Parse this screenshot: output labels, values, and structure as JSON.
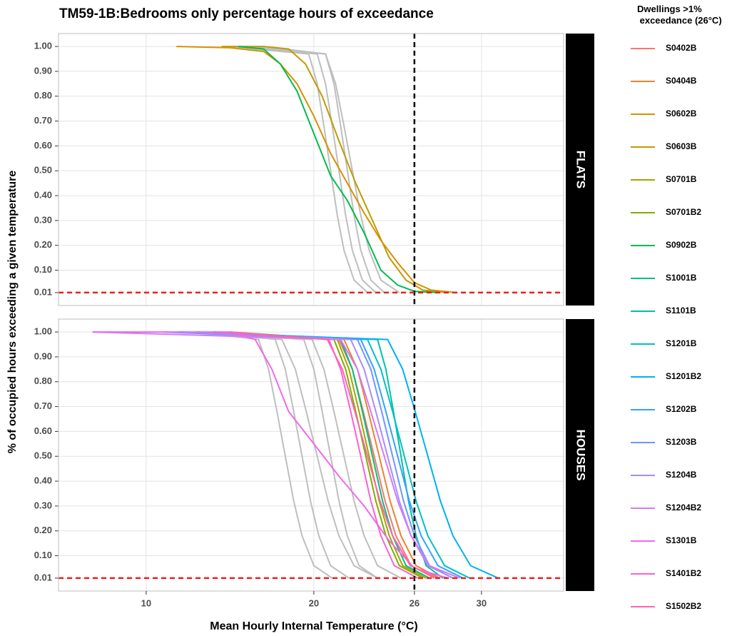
{
  "chart_data": {
    "type": "line",
    "title": "TM59-1B:Bedrooms only percentage hours of exceedance",
    "x_label": "Mean Hourly Internal Temperature (°C)",
    "y_label": "% of occupied hours exceeding a given temperature",
    "legend_title": "Dwellings >1%\n exceedance (26°C)",
    "xlim": [
      4.77,
      34.9
    ],
    "xticks": [
      10,
      20,
      26,
      30
    ],
    "ylim": [
      -0.042,
      1.052
    ],
    "yticks": [
      {
        "value": 0.01,
        "label": "0.01"
      },
      {
        "value": 0.1,
        "label": "0.10"
      },
      {
        "value": 0.2,
        "label": "0.20"
      },
      {
        "value": 0.3,
        "label": "0.30"
      },
      {
        "value": 0.4,
        "label": "0.40"
      },
      {
        "value": 0.5,
        "label": "0.50"
      },
      {
        "value": 0.6,
        "label": "0.60"
      },
      {
        "value": 0.7,
        "label": "0.70"
      },
      {
        "value": 0.8,
        "label": "0.80"
      },
      {
        "value": 0.9,
        "label": "0.90"
      },
      {
        "value": 1,
        "label": "1.00"
      }
    ],
    "grid": true,
    "reference_x": 26,
    "reference_x_color": "#000000",
    "reference_y": 0.01,
    "reference_y_color": "#e8211f",
    "panels": [
      {
        "label": "FLATS",
        "series": [
          {
            "color": "#bebebe",
            "x": [
              14.8,
              19.7,
              20.2,
              20.6,
              21.0,
              21.4,
              21.8,
              22.4,
              23.2
            ],
            "values": [
              1,
              0.97,
              0.85,
              0.68,
              0.5,
              0.32,
              0.18,
              0.06,
              0.01
            ]
          },
          {
            "color": "#bebebe",
            "x": [
              15.5,
              20.2,
              20.7,
              21.1,
              21.5,
              21.9,
              22.3,
              22.9,
              23.7
            ],
            "values": [
              1,
              0.97,
              0.85,
              0.68,
              0.5,
              0.32,
              0.18,
              0.06,
              0.01
            ]
          },
          {
            "color": "#bebebe",
            "x": [
              16,
              20.7,
              21.2,
              21.6,
              22.0,
              22.4,
              22.8,
              23.4,
              24.2
            ],
            "values": [
              1,
              0.97,
              0.85,
              0.68,
              0.5,
              0.32,
              0.18,
              0.06,
              0.01
            ]
          },
          {
            "color": "#bebebe",
            "x": [
              17,
              20.7,
              21.3,
              21.8,
              22.3,
              22.8,
              23.3,
              24.0,
              25.1
            ],
            "values": [
              1,
              0.97,
              0.85,
              0.68,
              0.5,
              0.32,
              0.18,
              0.06,
              0.01
            ]
          },
          {
            "name": "S0602B",
            "color": "#d89000",
            "x": [
              11.8,
              15,
              17,
              18,
              19,
              20,
              21,
              22,
              23,
              24,
              25,
              26,
              27,
              28.5
            ],
            "values": [
              1,
              0.995,
              0.98,
              0.93,
              0.85,
              0.72,
              0.57,
              0.45,
              0.33,
              0.22,
              0.13,
              0.05,
              0.02,
              0.01
            ]
          },
          {
            "name": "S0603B",
            "color": "#c09b00",
            "x": [
              14.5,
              17,
              18.5,
              19.5,
              20.5,
              21.5,
              22.5,
              23.5,
              24.5,
              25.5,
              26.5,
              28
            ],
            "values": [
              1,
              1,
              0.99,
              0.93,
              0.8,
              0.62,
              0.45,
              0.3,
              0.15,
              0.06,
              0.02,
              0.01
            ]
          },
          {
            "name": "S0902B",
            "color": "#00bb4e",
            "x": [
              15.5,
              17,
              18,
              19,
              20,
              21,
              22,
              23,
              24,
              25,
              26,
              27.5
            ],
            "values": [
              1,
              0.99,
              0.93,
              0.82,
              0.65,
              0.48,
              0.38,
              0.25,
              0.1,
              0.04,
              0.015,
              0.01
            ]
          }
        ]
      },
      {
        "label": "HOUSES",
        "series": [
          {
            "color": "#bebebe",
            "x": [
              13,
              16.7,
              17.3,
              17.8,
              18.3,
              18.8,
              19.3,
              20.0,
              21.1
            ],
            "values": [
              1,
              0.97,
              0.85,
              0.68,
              0.5,
              0.32,
              0.18,
              0.06,
              0.01
            ]
          },
          {
            "color": "#bebebe",
            "x": [
              14,
              17.7,
              18.3,
              18.8,
              19.3,
              19.8,
              20.3,
              21.0,
              22.1
            ],
            "values": [
              1,
              0.97,
              0.85,
              0.68,
              0.5,
              0.32,
              0.18,
              0.06,
              0.01
            ]
          },
          {
            "color": "#bebebe",
            "x": [
              12,
              18.1,
              18.9,
              19.55,
              20.2,
              20.85,
              21.5,
              22.4,
              23.8
            ],
            "values": [
              1,
              0.97,
              0.85,
              0.68,
              0.5,
              0.32,
              0.18,
              0.06,
              0.01
            ]
          },
          {
            "color": "#bebebe",
            "x": [
              13,
              19.4,
              20.0,
              20.5,
              21.0,
              21.5,
              22.0,
              22.7,
              23.8
            ],
            "values": [
              1,
              0.97,
              0.85,
              0.68,
              0.5,
              0.32,
              0.18,
              0.06,
              0.01
            ]
          },
          {
            "color": "#bebebe",
            "x": [
              14,
              19.9,
              20.6,
              21.2,
              21.8,
              22.4,
              23.0,
              23.8,
              25.2
            ],
            "values": [
              1,
              0.97,
              0.85,
              0.68,
              0.5,
              0.32,
              0.18,
              0.06,
              0.01
            ]
          },
          {
            "name": "S0402B",
            "color": "#f8766d",
            "x": [
              12,
              21.5,
              22.3,
              22.95,
              23.6,
              24.25,
              24.9,
              25.8,
              27.2
            ],
            "values": [
              1,
              0.97,
              0.85,
              0.68,
              0.5,
              0.32,
              0.18,
              0.06,
              0.01
            ]
          },
          {
            "name": "S0404B",
            "color": "#ea8331",
            "x": [
              13,
              21.8,
              22.6,
              23.25,
              23.9,
              24.55,
              25.2,
              26.1,
              27.5
            ],
            "values": [
              1,
              0.97,
              0.85,
              0.68,
              0.5,
              0.32,
              0.18,
              0.06,
              0.01
            ]
          },
          {
            "name": "S0701B",
            "color": "#a3a500",
            "x": [
              14,
              21.4,
              22.1,
              22.7,
              23.3,
              23.9,
              24.5,
              25.3,
              26.7
            ],
            "values": [
              1,
              0.97,
              0.85,
              0.68,
              0.5,
              0.32,
              0.18,
              0.06,
              0.01
            ]
          },
          {
            "name": "S0701B2",
            "color": "#7cae00",
            "x": [
              13,
              21.2,
              21.9,
              22.5,
              23.1,
              23.7,
              24.3,
              25.1,
              26.5
            ],
            "values": [
              1,
              0.97,
              0.85,
              0.68,
              0.5,
              0.32,
              0.18,
              0.06,
              0.01
            ]
          },
          {
            "name": "S1001B",
            "color": "#00bf7d",
            "x": [
              15,
              21.6,
              22.3,
              22.9,
              23.5,
              24.1,
              24.7,
              25.5,
              26.9
            ],
            "values": [
              1,
              0.97,
              0.85,
              0.68,
              0.5,
              0.32,
              0.18,
              0.06,
              0.01
            ]
          },
          {
            "name": "S1101B",
            "color": "#00c1a3",
            "x": [
              13,
              23.8,
              24.3,
              24.75,
              25.2,
              25.65,
              26.1,
              26.7,
              27.7
            ],
            "values": [
              1,
              0.97,
              0.85,
              0.68,
              0.5,
              0.32,
              0.18,
              0.06,
              0.01
            ]
          },
          {
            "name": "S1201B",
            "color": "#00bfc4",
            "x": [
              12,
              23.2,
              24.0,
              24.7,
              25.4,
              26.1,
              26.8,
              27.8,
              29.3
            ],
            "values": [
              1,
              0.97,
              0.85,
              0.68,
              0.5,
              0.32,
              0.18,
              0.06,
              0.01
            ]
          },
          {
            "name": "S1201B2",
            "color": "#00b0f6",
            "x": [
              12,
              24.4,
              25.3,
              26.05,
              26.8,
              27.55,
              28.3,
              29.35,
              31.0
            ],
            "values": [
              1,
              0.97,
              0.85,
              0.68,
              0.5,
              0.32,
              0.18,
              0.06,
              0.01
            ]
          },
          {
            "name": "S1202B",
            "color": "#35a2ff",
            "x": [
              11,
              22.8,
              23.6,
              24.3,
              25.0,
              25.7,
              26.4,
              27.4,
              28.9
            ],
            "values": [
              1,
              0.97,
              0.85,
              0.68,
              0.5,
              0.32,
              0.18,
              0.06,
              0.01
            ]
          },
          {
            "name": "S1203B",
            "color": "#6f95ff",
            "x": [
              13,
              22.6,
              23.4,
              24.05,
              24.7,
              25.35,
              26.0,
              26.9,
              28.3
            ],
            "values": [
              1,
              0.97,
              0.85,
              0.68,
              0.5,
              0.32,
              0.18,
              0.06,
              0.01
            ]
          },
          {
            "name": "S1204B",
            "color": "#a88bff",
            "x": [
              12,
              22.2,
              23.0,
              23.7,
              24.4,
              25.1,
              25.8,
              26.8,
              28.3
            ],
            "values": [
              1,
              0.97,
              0.85,
              0.68,
              0.5,
              0.32,
              0.18,
              0.06,
              0.01
            ]
          },
          {
            "name": "S1204B2",
            "color": "#d27bf5",
            "x": [
              6.8,
              21.6,
              22.6,
              23.4,
              24.2,
              25.0,
              25.8,
              26.9,
              28.7
            ],
            "values": [
              1,
              0.97,
              0.85,
              0.68,
              0.5,
              0.32,
              0.18,
              0.06,
              0.01
            ]
          },
          {
            "name": "S1301B",
            "color": "#ee6aea",
            "x": [
              6.8,
              15,
              16.5,
              17.5,
              18.5,
              20,
              21.5,
              23,
              24.5,
              26,
              28
            ],
            "values": [
              1,
              1,
              0.97,
              0.85,
              0.68,
              0.55,
              0.42,
              0.3,
              0.16,
              0.05,
              0.01
            ]
          },
          {
            "name": "S1401B2",
            "color": "#fb61d2",
            "x": [
              14,
              20.9,
              21.6,
              22.2,
              22.8,
              23.4,
              24.0,
              24.8,
              26.2
            ],
            "values": [
              1,
              0.97,
              0.85,
              0.68,
              0.5,
              0.32,
              0.18,
              0.06,
              0.01
            ]
          },
          {
            "name": "S1502B2",
            "color": "#ff65ae",
            "x": [
              15,
              20.8,
              21.7,
              22.45,
              23.2,
              23.95,
              24.7,
              25.75,
              27.4
            ],
            "values": [
              1,
              0.97,
              0.85,
              0.68,
              0.5,
              0.32,
              0.18,
              0.06,
              0.01
            ]
          }
        ]
      }
    ]
  }
}
